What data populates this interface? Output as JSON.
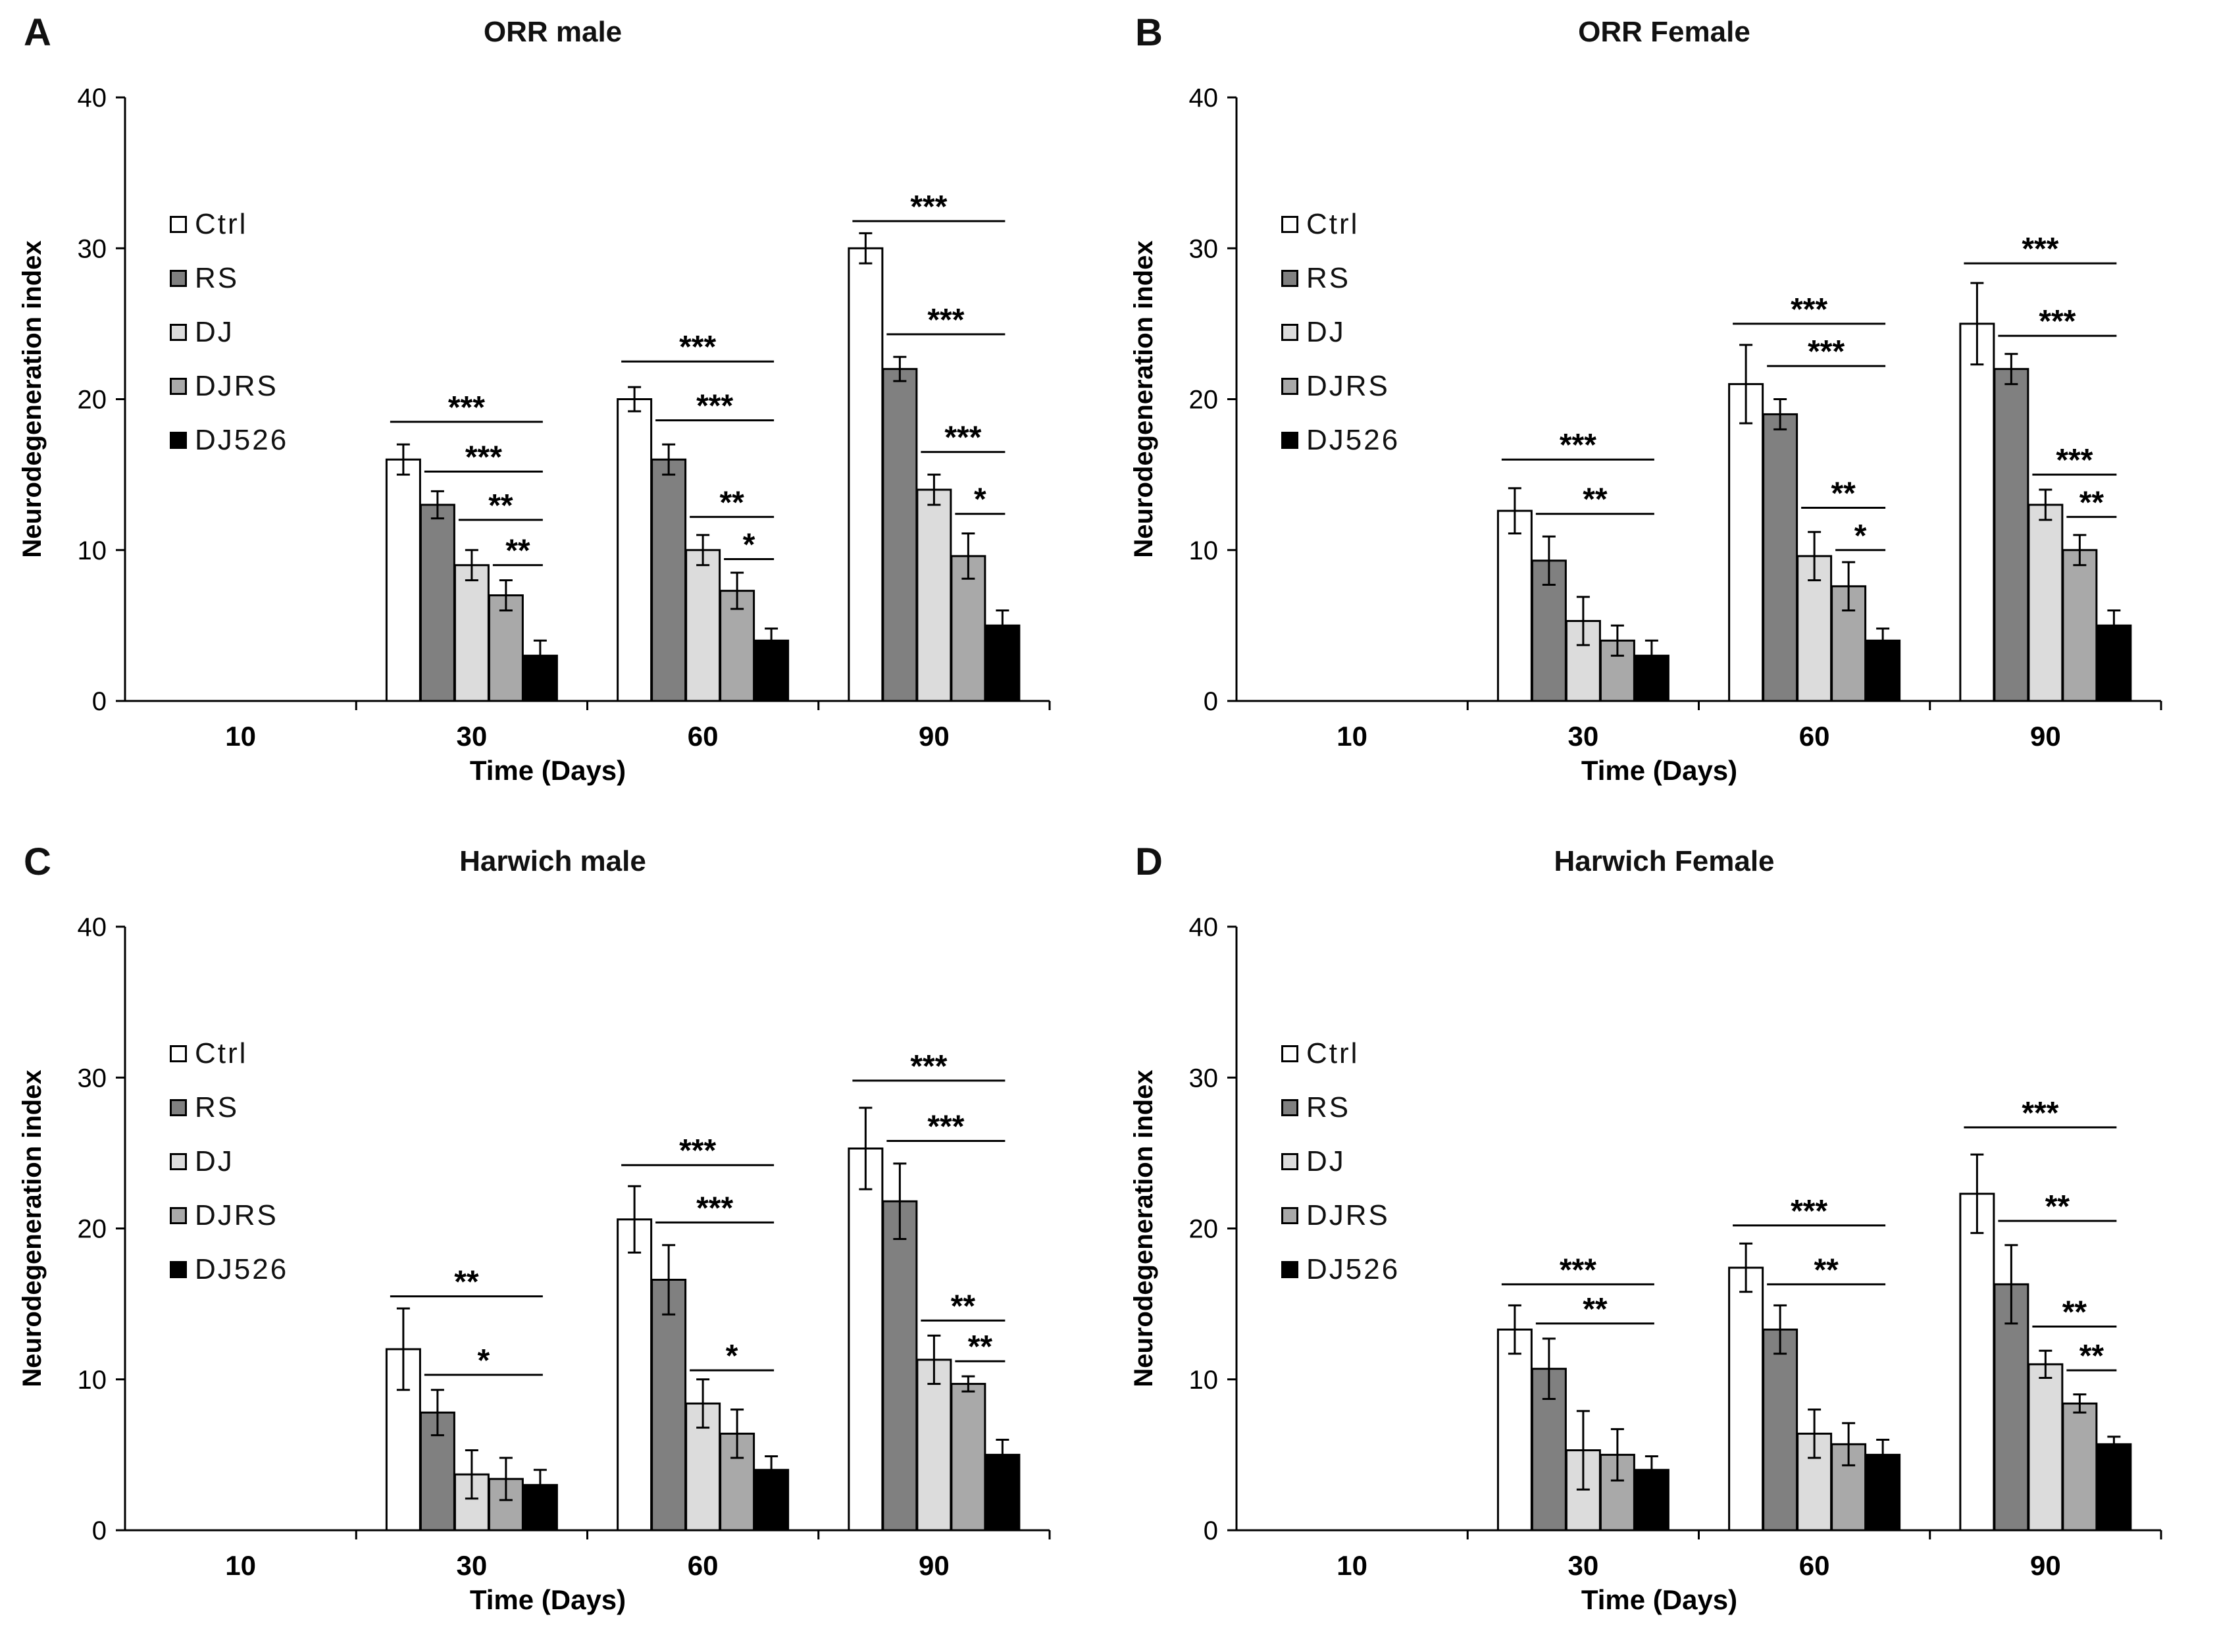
{
  "legend": [
    {
      "label": "Ctrl",
      "color": "#ffffff"
    },
    {
      "label": "RS",
      "color": "#808080"
    },
    {
      "label": "DJ",
      "color": "#dcdcdc"
    },
    {
      "label": "DJRS",
      "color": "#a9a9a9"
    },
    {
      "label": "DJ526",
      "color": "#000000"
    }
  ],
  "chart_data": [
    {
      "panel": "A",
      "type": "bar",
      "title": "ORR male",
      "xlabel": "Time (Days)",
      "ylabel": "Neurodegeneration index",
      "ylim": [
        0,
        40
      ],
      "yticks": [
        0,
        10,
        20,
        30,
        40
      ],
      "categories": [
        "10",
        "30",
        "60",
        "90"
      ],
      "series": [
        {
          "name": "Ctrl",
          "values": [
            null,
            16,
            20,
            30
          ],
          "errors": [
            null,
            1.0,
            0.8,
            1.0
          ]
        },
        {
          "name": "RS",
          "values": [
            null,
            13,
            16,
            22
          ],
          "errors": [
            null,
            0.9,
            1.0,
            0.8
          ]
        },
        {
          "name": "DJ",
          "values": [
            null,
            9,
            10,
            14
          ],
          "errors": [
            null,
            1.0,
            1.0,
            1.0
          ]
        },
        {
          "name": "DJRS",
          "values": [
            null,
            7,
            7.3,
            9.6
          ],
          "errors": [
            null,
            1.0,
            1.2,
            1.5
          ]
        },
        {
          "name": "DJ526",
          "values": [
            null,
            3,
            4,
            5
          ],
          "errors": [
            null,
            1.0,
            0.8,
            1.0
          ]
        }
      ],
      "significance": [
        {
          "category": 1,
          "from": 0,
          "to": 4,
          "y": 18.5,
          "label": "***"
        },
        {
          "category": 1,
          "from": 1,
          "to": 4,
          "y": 15.2,
          "label": "***"
        },
        {
          "category": 1,
          "from": 2,
          "to": 4,
          "y": 12.0,
          "label": "**"
        },
        {
          "category": 1,
          "from": 3,
          "to": 4,
          "y": 9.0,
          "label": "**"
        },
        {
          "category": 2,
          "from": 0,
          "to": 4,
          "y": 22.5,
          "label": "***"
        },
        {
          "category": 2,
          "from": 1,
          "to": 4,
          "y": 18.6,
          "label": "***"
        },
        {
          "category": 2,
          "from": 2,
          "to": 4,
          "y": 12.2,
          "label": "**"
        },
        {
          "category": 2,
          "from": 3,
          "to": 4,
          "y": 9.4,
          "label": "*"
        },
        {
          "category": 3,
          "from": 0,
          "to": 4,
          "y": 31.8,
          "label": "***"
        },
        {
          "category": 3,
          "from": 1,
          "to": 4,
          "y": 24.3,
          "label": "***"
        },
        {
          "category": 3,
          "from": 2,
          "to": 4,
          "y": 16.5,
          "label": "***"
        },
        {
          "category": 3,
          "from": 3,
          "to": 4,
          "y": 12.4,
          "label": "*"
        }
      ]
    },
    {
      "panel": "B",
      "type": "bar",
      "title": "ORR Female",
      "xlabel": "Time (Days)",
      "ylabel": "Neurodegeneration index",
      "ylim": [
        0,
        40
      ],
      "yticks": [
        0,
        10,
        20,
        30,
        40
      ],
      "categories": [
        "10",
        "30",
        "60",
        "90"
      ],
      "series": [
        {
          "name": "Ctrl",
          "values": [
            null,
            12.6,
            21,
            25
          ],
          "errors": [
            null,
            1.5,
            2.6,
            2.7
          ]
        },
        {
          "name": "RS",
          "values": [
            null,
            9.3,
            19,
            22
          ],
          "errors": [
            null,
            1.6,
            1.0,
            1.0
          ]
        },
        {
          "name": "DJ",
          "values": [
            null,
            5.3,
            9.6,
            13
          ],
          "errors": [
            null,
            1.6,
            1.6,
            1.0
          ]
        },
        {
          "name": "DJRS",
          "values": [
            null,
            4,
            7.6,
            10
          ],
          "errors": [
            null,
            1.0,
            1.6,
            1.0
          ]
        },
        {
          "name": "DJ526",
          "values": [
            null,
            3,
            4,
            5
          ],
          "errors": [
            null,
            1.0,
            0.8,
            1.0
          ]
        }
      ],
      "significance": [
        {
          "category": 1,
          "from": 0,
          "to": 4,
          "y": 16.0,
          "label": "***"
        },
        {
          "category": 1,
          "from": 1,
          "to": 4,
          "y": 12.4,
          "label": "**"
        },
        {
          "category": 2,
          "from": 0,
          "to": 4,
          "y": 25.0,
          "label": "***"
        },
        {
          "category": 2,
          "from": 1,
          "to": 4,
          "y": 22.2,
          "label": "***"
        },
        {
          "category": 2,
          "from": 2,
          "to": 4,
          "y": 12.8,
          "label": "**"
        },
        {
          "category": 2,
          "from": 3,
          "to": 4,
          "y": 10.0,
          "label": "*"
        },
        {
          "category": 3,
          "from": 0,
          "to": 4,
          "y": 29.0,
          "label": "***"
        },
        {
          "category": 3,
          "from": 1,
          "to": 4,
          "y": 24.2,
          "label": "***"
        },
        {
          "category": 3,
          "from": 2,
          "to": 4,
          "y": 15.0,
          "label": "***"
        },
        {
          "category": 3,
          "from": 3,
          "to": 4,
          "y": 12.2,
          "label": "**"
        }
      ]
    },
    {
      "panel": "C",
      "type": "bar",
      "title": "Harwich male",
      "xlabel": "Time (Days)",
      "ylabel": "Neurodegeneration index",
      "ylim": [
        0,
        40
      ],
      "yticks": [
        0,
        10,
        20,
        30,
        40
      ],
      "categories": [
        "10",
        "30",
        "60",
        "90"
      ],
      "series": [
        {
          "name": "Ctrl",
          "values": [
            null,
            12,
            20.6,
            25.3
          ],
          "errors": [
            null,
            2.7,
            2.2,
            2.7
          ]
        },
        {
          "name": "RS",
          "values": [
            null,
            7.8,
            16.6,
            21.8
          ],
          "errors": [
            null,
            1.5,
            2.3,
            2.5
          ]
        },
        {
          "name": "DJ",
          "values": [
            null,
            3.7,
            8.4,
            11.3
          ],
          "errors": [
            null,
            1.6,
            1.6,
            1.6
          ]
        },
        {
          "name": "DJRS",
          "values": [
            null,
            3.4,
            6.4,
            9.7
          ],
          "errors": [
            null,
            1.4,
            1.6,
            0.5
          ]
        },
        {
          "name": "DJ526",
          "values": [
            null,
            3,
            4,
            5
          ],
          "errors": [
            null,
            1.0,
            0.9,
            1.0
          ]
        }
      ],
      "significance": [
        {
          "category": 1,
          "from": 0,
          "to": 4,
          "y": 15.5,
          "label": "**"
        },
        {
          "category": 1,
          "from": 1,
          "to": 4,
          "y": 10.3,
          "label": "*"
        },
        {
          "category": 2,
          "from": 0,
          "to": 4,
          "y": 24.2,
          "label": "***"
        },
        {
          "category": 2,
          "from": 1,
          "to": 4,
          "y": 20.4,
          "label": "***"
        },
        {
          "category": 2,
          "from": 2,
          "to": 4,
          "y": 10.6,
          "label": "*"
        },
        {
          "category": 3,
          "from": 0,
          "to": 4,
          "y": 29.8,
          "label": "***"
        },
        {
          "category": 3,
          "from": 1,
          "to": 4,
          "y": 25.8,
          "label": "***"
        },
        {
          "category": 3,
          "from": 2,
          "to": 4,
          "y": 13.9,
          "label": "**"
        },
        {
          "category": 3,
          "from": 3,
          "to": 4,
          "y": 11.2,
          "label": "**"
        }
      ]
    },
    {
      "panel": "D",
      "type": "bar",
      "title": "Harwich Female",
      "xlabel": "Time (Days)",
      "ylabel": "Neurodegeneration index",
      "ylim": [
        0,
        40
      ],
      "yticks": [
        0,
        10,
        20,
        30,
        40
      ],
      "categories": [
        "10",
        "30",
        "60",
        "90"
      ],
      "series": [
        {
          "name": "Ctrl",
          "values": [
            null,
            13.3,
            17.4,
            22.3
          ],
          "errors": [
            null,
            1.6,
            1.6,
            2.6
          ]
        },
        {
          "name": "RS",
          "values": [
            null,
            10.7,
            13.3,
            16.3
          ],
          "errors": [
            null,
            2.0,
            1.6,
            2.6
          ]
        },
        {
          "name": "DJ",
          "values": [
            null,
            5.3,
            6.4,
            11
          ],
          "errors": [
            null,
            2.6,
            1.6,
            0.9
          ]
        },
        {
          "name": "DJRS",
          "values": [
            null,
            5,
            5.7,
            8.4
          ],
          "errors": [
            null,
            1.7,
            1.4,
            0.6
          ]
        },
        {
          "name": "DJ526",
          "values": [
            null,
            4,
            5,
            5.7
          ],
          "errors": [
            null,
            0.9,
            1.0,
            0.5
          ]
        }
      ],
      "significance": [
        {
          "category": 1,
          "from": 0,
          "to": 4,
          "y": 16.3,
          "label": "***"
        },
        {
          "category": 1,
          "from": 1,
          "to": 4,
          "y": 13.7,
          "label": "**"
        },
        {
          "category": 2,
          "from": 0,
          "to": 4,
          "y": 20.2,
          "label": "***"
        },
        {
          "category": 2,
          "from": 1,
          "to": 4,
          "y": 16.3,
          "label": "**"
        },
        {
          "category": 3,
          "from": 0,
          "to": 4,
          "y": 26.7,
          "label": "***"
        },
        {
          "category": 3,
          "from": 1,
          "to": 4,
          "y": 20.5,
          "label": "**"
        },
        {
          "category": 3,
          "from": 2,
          "to": 4,
          "y": 13.5,
          "label": "**"
        },
        {
          "category": 3,
          "from": 3,
          "to": 4,
          "y": 10.6,
          "label": "**"
        }
      ]
    }
  ]
}
